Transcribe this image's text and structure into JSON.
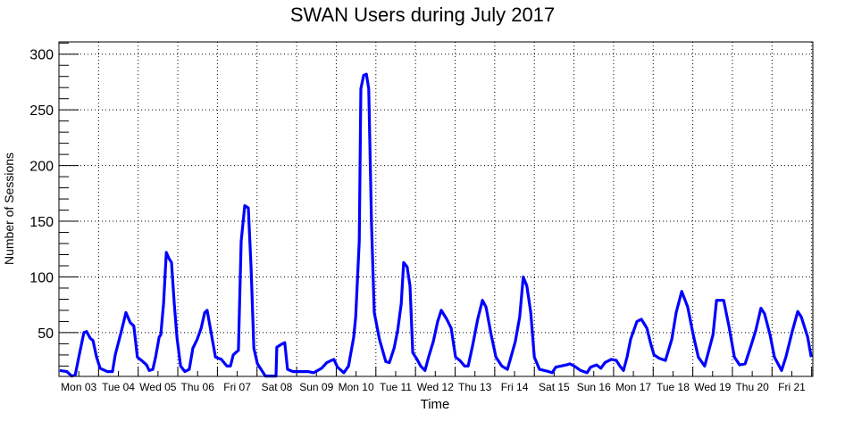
{
  "chart_data": {
    "type": "line",
    "title": "SWAN Users during July 2017",
    "xlabel": "Time",
    "ylabel": "Number of Sessions",
    "xunit": "days since Mon 03 July 2017 00:00",
    "xlim": [
      0,
      19.03
    ],
    "ylim": [
      10.7,
      311
    ],
    "grid": true,
    "line_color": "#0000ff",
    "x_tick_labels": [
      "Mon 03",
      "Tue 04",
      "Wed 05",
      "Thu 06",
      "Fri 07",
      "Sat 08",
      "Sun 09",
      "Mon 10",
      "Tue 11",
      "Wed 12",
      "Thu 13",
      "Fri 14",
      "Sat 15",
      "Sun 16",
      "Mon 17",
      "Tue 18",
      "Wed 19",
      "Thu 20",
      "Fri 21"
    ],
    "y_ticks": [
      50,
      100,
      150,
      200,
      250,
      300
    ],
    "series": [
      {
        "name": "Sessions",
        "x": [
          0.02,
          0.2,
          0.32,
          0.41,
          0.5,
          0.63,
          0.7,
          0.79,
          0.86,
          0.95,
          1.04,
          1.22,
          1.35,
          1.42,
          1.58,
          1.69,
          1.8,
          1.89,
          1.98,
          2.12,
          2.21,
          2.28,
          2.37,
          2.44,
          2.53,
          2.57,
          2.64,
          2.71,
          2.77,
          2.84,
          2.91,
          2.98,
          3.07,
          3.18,
          3.29,
          3.38,
          3.49,
          3.59,
          3.68,
          3.74,
          3.83,
          3.95,
          4.1,
          4.24,
          4.33,
          4.4,
          4.46,
          4.53,
          4.6,
          4.69,
          4.78,
          4.85,
          4.92,
          5.01,
          5.12,
          5.21,
          5.39,
          5.48,
          5.5,
          5.64,
          5.7,
          5.77,
          5.91,
          6.29,
          6.43,
          6.63,
          6.76,
          6.88,
          6.94,
          7.03,
          7.19,
          7.31,
          7.44,
          7.49,
          7.58,
          7.62,
          7.69,
          7.76,
          7.82,
          7.89,
          7.96,
          8.09,
          8.25,
          8.34,
          8.46,
          8.55,
          8.64,
          8.7,
          8.79,
          8.86,
          8.93,
          9.04,
          9.13,
          9.24,
          9.33,
          9.45,
          9.56,
          9.65,
          9.79,
          9.9,
          10.01,
          10.12,
          10.24,
          10.33,
          10.44,
          10.57,
          10.69,
          10.78,
          10.91,
          11.03,
          11.18,
          11.32,
          11.41,
          11.52,
          11.63,
          11.72,
          11.81,
          11.91,
          12.0,
          12.13,
          12.36,
          12.45,
          12.54,
          12.67,
          12.81,
          12.9,
          13.01,
          13.17,
          13.33,
          13.42,
          13.57,
          13.68,
          13.78,
          13.94,
          14.07,
          14.16,
          14.25,
          14.34,
          14.43,
          14.59,
          14.7,
          14.84,
          14.93,
          15.02,
          15.15,
          15.31,
          15.47,
          15.58,
          15.72,
          15.87,
          16.01,
          16.14,
          16.3,
          16.39,
          16.51,
          16.6,
          16.78,
          16.91,
          17.05,
          17.18,
          17.32,
          17.45,
          17.59,
          17.72,
          17.81,
          17.95,
          18.06,
          18.24,
          18.35,
          18.51,
          18.65,
          18.74,
          18.9,
          18.99
        ],
        "y": [
          16,
          15,
          11,
          12,
          28,
          50,
          51,
          45,
          43,
          28,
          18,
          15,
          15,
          30,
          52,
          68,
          59,
          56,
          28,
          24,
          21,
          16,
          17,
          28,
          46,
          48,
          76,
          122,
          117,
          113,
          76,
          45,
          20,
          15,
          17,
          36,
          44,
          54,
          68,
          70,
          52,
          28,
          26,
          20,
          20,
          30,
          32,
          34,
          132,
          164,
          162,
          108,
          36,
          22,
          16,
          11,
          11,
          11,
          37,
          40,
          41,
          17,
          15,
          15,
          14,
          18,
          23,
          25,
          26,
          19,
          14,
          20,
          46,
          64,
          132,
          269,
          281,
          282,
          269,
          148,
          68,
          44,
          24,
          23,
          36,
          52,
          76,
          113,
          109,
          92,
          32,
          26,
          20,
          16,
          28,
          42,
          60,
          70,
          62,
          54,
          28,
          25,
          20,
          20,
          38,
          62,
          79,
          73,
          48,
          28,
          20,
          17,
          28,
          42,
          64,
          100,
          92,
          68,
          28,
          17,
          15,
          14,
          19,
          20,
          21,
          22,
          20,
          16,
          14,
          19,
          21,
          18,
          23,
          26,
          25,
          20,
          16,
          28,
          44,
          60,
          62,
          54,
          41,
          30,
          27,
          25,
          44,
          68,
          87,
          73,
          48,
          28,
          20,
          32,
          48,
          79,
          79,
          56,
          28,
          21,
          22,
          36,
          52,
          72,
          67,
          48,
          28,
          16,
          28,
          51,
          69,
          64,
          46,
          28
        ]
      }
    ]
  }
}
